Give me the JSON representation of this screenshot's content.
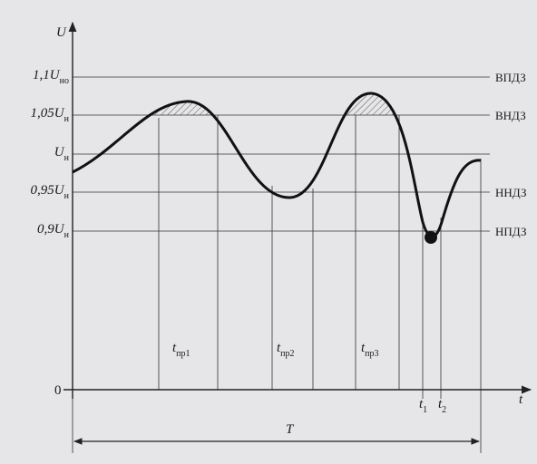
{
  "axes": {
    "y": "U",
    "x": "t",
    "origin": "0"
  },
  "levels": [
    {
      "main": "1,1U",
      "sub": "но",
      "zone": "ВПДЗ"
    },
    {
      "main": "1,05U",
      "sub": "н",
      "zone": "ВНДЗ"
    },
    {
      "main": "U",
      "sub": "н"
    },
    {
      "main": "0,95U",
      "sub": "н",
      "zone": "ННДЗ"
    },
    {
      "main": "0,9U",
      "sub": "н",
      "zone": "НПДЗ"
    }
  ],
  "times": [
    {
      "main": "t",
      "sub": "пр1"
    },
    {
      "main": "t",
      "sub": "пр2"
    },
    {
      "main": "t",
      "sub": "пр3"
    },
    {
      "main": "t",
      "sub": "1"
    },
    {
      "main": "t",
      "sub": "2"
    }
  ],
  "period": "T"
}
